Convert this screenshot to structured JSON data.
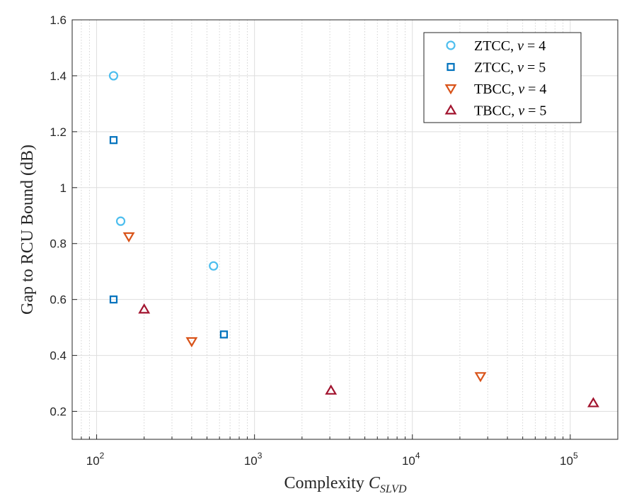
{
  "chart_data": {
    "type": "scatter",
    "title": "",
    "xlabel": {
      "main": "Complexity ",
      "var": "C",
      "sub": "SLVD"
    },
    "ylabel": "Gap to RCU Bound (dB)",
    "x_scale": "log",
    "xlim": [
      70,
      200000
    ],
    "ylim": [
      0.1,
      1.6
    ],
    "x_ticks": [
      {
        "value": 100,
        "base": "10",
        "exp": "2"
      },
      {
        "value": 1000,
        "base": "10",
        "exp": "3"
      },
      {
        "value": 10000,
        "base": "10",
        "exp": "4"
      },
      {
        "value": 100000,
        "base": "10",
        "exp": "5"
      }
    ],
    "y_ticks": [
      {
        "value": 0.2,
        "label": "0.2"
      },
      {
        "value": 0.4,
        "label": "0.4"
      },
      {
        "value": 0.6,
        "label": "0.6"
      },
      {
        "value": 0.8,
        "label": "0.8"
      },
      {
        "value": 1.0,
        "label": "1"
      },
      {
        "value": 1.2,
        "label": "1.2"
      },
      {
        "value": 1.4,
        "label": "1.4"
      },
      {
        "value": 1.6,
        "label": "1.6"
      }
    ],
    "grid": true,
    "legend_position": "top-right",
    "series": [
      {
        "name": {
          "code": "ZTCC, ",
          "var": "v",
          "rest": " = 4"
        },
        "marker": "circle",
        "color": "#4DBEEE",
        "points": [
          [
            128,
            1.4
          ],
          [
            142,
            0.88
          ],
          [
            550,
            0.72
          ]
        ]
      },
      {
        "name": {
          "code": "ZTCC, ",
          "var": "v",
          "rest": " = 5"
        },
        "marker": "square",
        "color": "#0072BD",
        "points": [
          [
            128,
            1.17
          ],
          [
            128,
            0.6
          ],
          [
            640,
            0.475
          ]
        ]
      },
      {
        "name": {
          "code": "TBCC, ",
          "var": "v",
          "rest": " = 4"
        },
        "marker": "triangle-down",
        "color": "#D95319",
        "points": [
          [
            160,
            0.825
          ],
          [
            400,
            0.45
          ],
          [
            27000,
            0.325
          ]
        ]
      },
      {
        "name": {
          "code": "TBCC, ",
          "var": "v",
          "rest": " = 5"
        },
        "marker": "triangle-up",
        "color": "#A2142F",
        "points": [
          [
            200,
            0.565
          ],
          [
            3050,
            0.275
          ],
          [
            140000,
            0.23
          ]
        ]
      }
    ]
  }
}
